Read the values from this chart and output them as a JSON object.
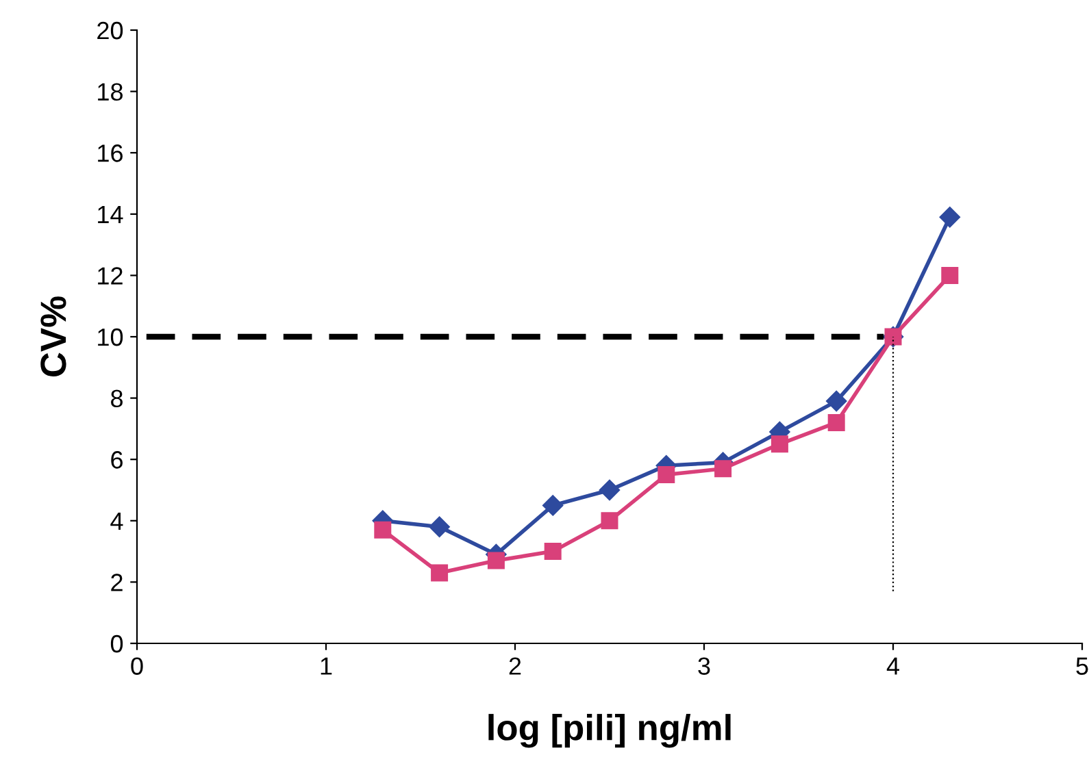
{
  "chart_data": {
    "type": "line",
    "xlabel": "log [pili] ng/ml",
    "ylabel": "CV%",
    "xlim": [
      0,
      5
    ],
    "xticks": [
      0,
      1,
      2,
      3,
      4,
      5
    ],
    "ylim": [
      0,
      20
    ],
    "yticks": [
      0,
      2,
      4,
      6,
      8,
      10,
      12,
      14,
      16,
      18,
      20
    ],
    "series": [
      {
        "color": "#2e4a9e",
        "marker": "diamond",
        "line_style": "solid",
        "x": [
          1.3,
          1.6,
          1.9,
          2.2,
          2.5,
          2.8,
          3.1,
          3.4,
          3.7,
          4.0,
          4.3
        ],
        "values": [
          4.0,
          3.8,
          2.9,
          4.5,
          5.0,
          5.8,
          5.9,
          6.9,
          7.9,
          10.0,
          13.9
        ]
      },
      {
        "color": "#d9407a",
        "marker": "square",
        "line_style": "solid",
        "x": [
          1.3,
          1.6,
          1.9,
          2.2,
          2.5,
          2.8,
          3.1,
          3.4,
          3.7,
          4.0,
          4.3
        ],
        "values": [
          3.7,
          2.3,
          2.7,
          3.0,
          4.0,
          5.5,
          5.7,
          6.5,
          7.2,
          10.0,
          12.0
        ]
      },
      {
        "color": "#000000",
        "marker": "none",
        "line_style": "dashed",
        "x": [
          0.05,
          3.95
        ],
        "values": [
          10,
          10
        ]
      },
      {
        "color": "#000000",
        "marker": "none",
        "line_style": "dotted",
        "x": [
          4.0,
          4.0
        ],
        "values": [
          1.7,
          10
        ]
      }
    ]
  }
}
